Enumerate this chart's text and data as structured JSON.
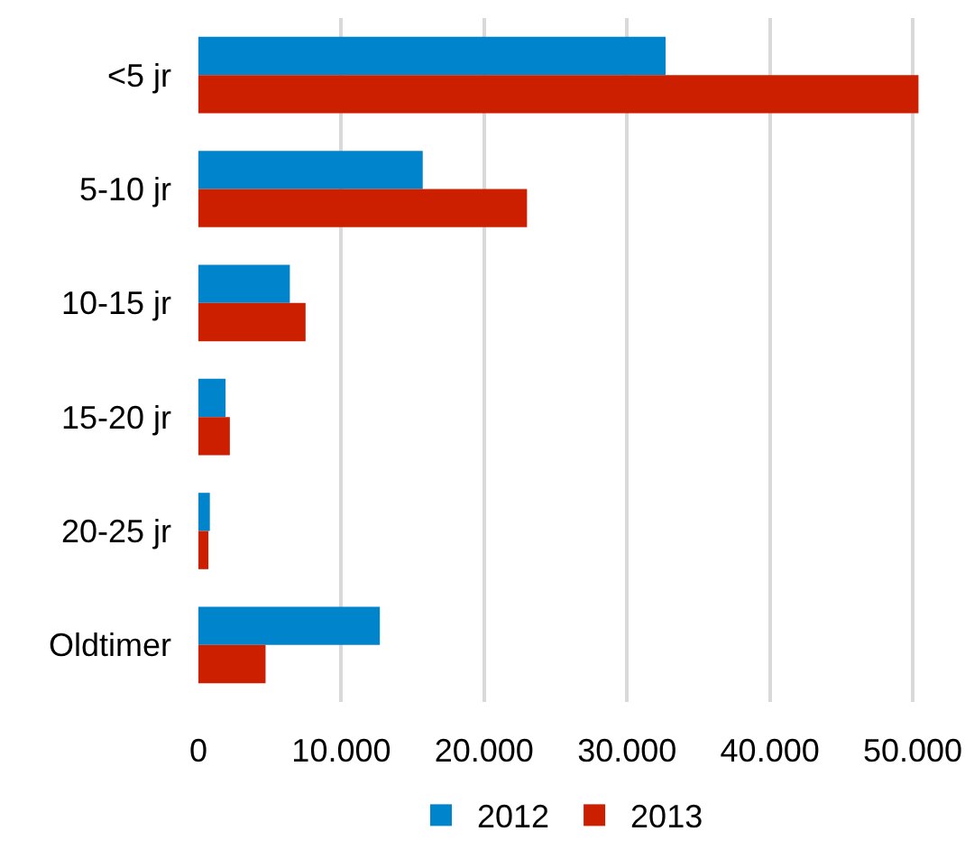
{
  "chart_data": {
    "type": "bar",
    "orientation": "horizontal",
    "categories": [
      "<5 jr",
      "5-10 jr",
      "10-15 jr",
      "15-20 jr",
      "20-25 jr",
      "Oldtimer"
    ],
    "series": [
      {
        "name": "2012",
        "color": "#0084cc",
        "values": [
          32700,
          15700,
          6400,
          1900,
          800,
          12700
        ]
      },
      {
        "name": "2013",
        "color": "#cc1f00",
        "values": [
          50400,
          23000,
          7500,
          2200,
          700,
          4700
        ]
      }
    ],
    "xlim": [
      0,
      50500
    ],
    "xticks": [
      {
        "value": 0,
        "label": "0"
      },
      {
        "value": 10000,
        "label": "10.000"
      },
      {
        "value": 20000,
        "label": "20.000"
      },
      {
        "value": 30000,
        "label": "30.000"
      },
      {
        "value": 40000,
        "label": "40.000"
      },
      {
        "value": 50000,
        "label": "50.000"
      }
    ],
    "grid": "x",
    "legend": "bottom"
  }
}
